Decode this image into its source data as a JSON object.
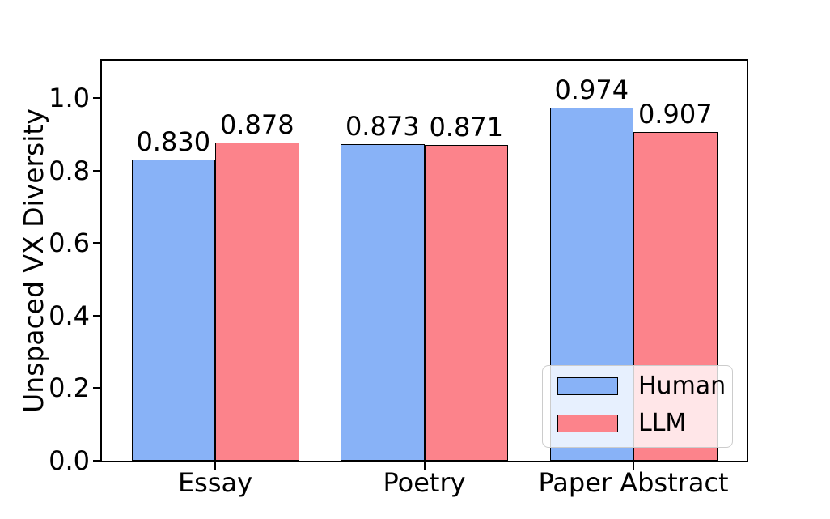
{
  "chart_data": {
    "type": "bar",
    "title": "",
    "ylabel": "Unspaced VX Diversity",
    "xlabel": "",
    "categories": [
      "Essay",
      "Poetry",
      "Paper Abstract"
    ],
    "series": [
      {
        "name": "Human",
        "color": "#88B2F7",
        "values": [
          0.83,
          0.873,
          0.974
        ],
        "labels": [
          "0.830",
          "0.873",
          "0.974"
        ]
      },
      {
        "name": "LLM",
        "color": "#FC838B",
        "values": [
          0.878,
          0.871,
          0.907
        ],
        "labels": [
          "0.878",
          "0.871",
          "0.907"
        ]
      }
    ],
    "ylim": [
      0.0,
      1.103
    ],
    "yticks": [
      {
        "value": 0.0,
        "label": "0.0"
      },
      {
        "value": 0.2,
        "label": "0.2"
      },
      {
        "value": 0.4,
        "label": "0.4"
      },
      {
        "value": 0.6,
        "label": "0.6"
      },
      {
        "value": 0.8,
        "label": "0.8"
      },
      {
        "value": 1.0,
        "label": "1.0"
      }
    ],
    "grid": false,
    "plot_background": "#ffffff",
    "bar_edge_color": "#000000",
    "legend": {
      "position": "lower-right",
      "frame": true,
      "frame_color": "#cccccc"
    }
  }
}
